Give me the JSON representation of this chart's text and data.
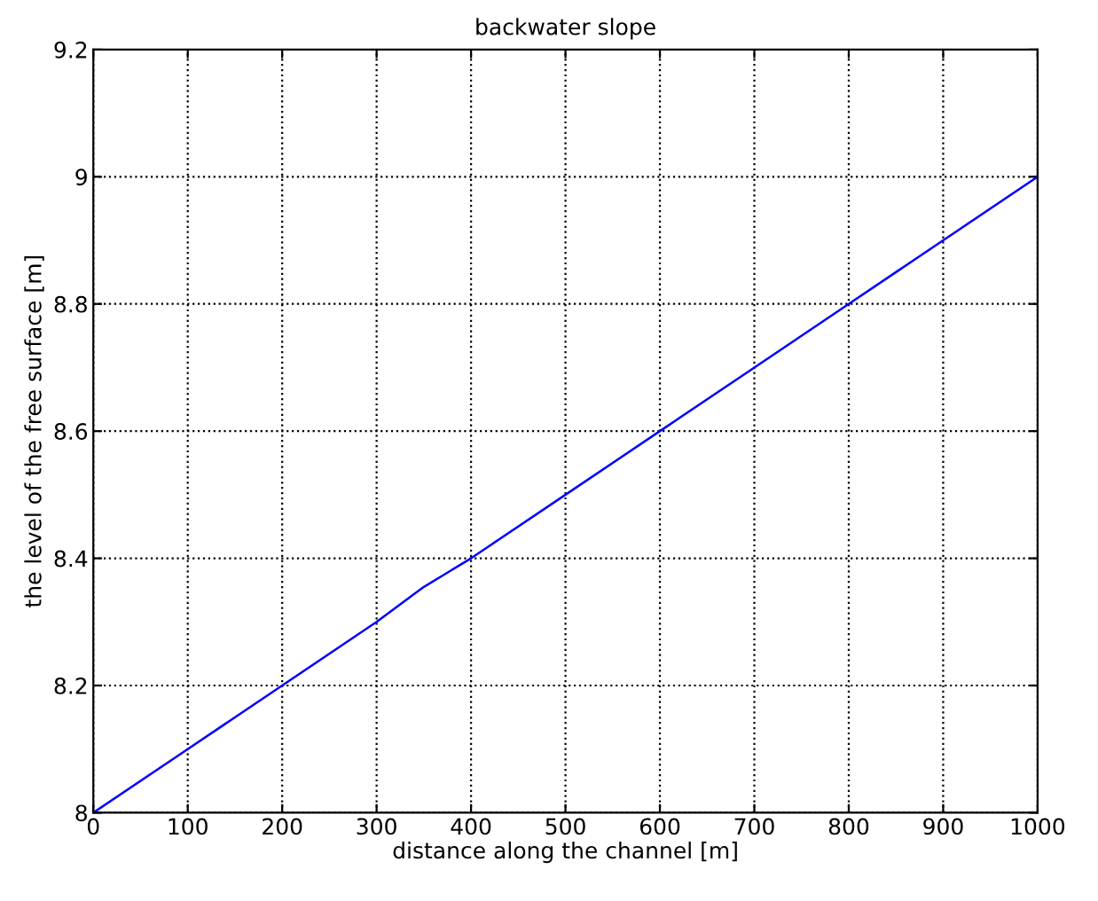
{
  "chart_data": {
    "type": "line",
    "title": "backwater slope",
    "xlabel": "distance along the channel [m]",
    "ylabel": "the level of the free surface [m]",
    "x": [
      0,
      100,
      200,
      300,
      350,
      400,
      500,
      600,
      700,
      800,
      900,
      1000
    ],
    "series": [
      {
        "color": "#0000ff",
        "values": [
          8.0,
          8.1,
          8.2,
          8.3,
          8.355,
          8.4,
          8.5,
          8.6,
          8.7,
          8.8,
          8.9,
          9.0
        ]
      }
    ],
    "xlim": [
      0,
      1000
    ],
    "xticks": [
      0,
      100,
      200,
      300,
      400,
      500,
      600,
      700,
      800,
      900,
      1000
    ],
    "ylim": [
      8,
      9.2
    ],
    "yticks": [
      8,
      8.2,
      8.4,
      8.6,
      8.8,
      9,
      9.2
    ],
    "grid": true,
    "line_style": "solid",
    "legend": false
  }
}
